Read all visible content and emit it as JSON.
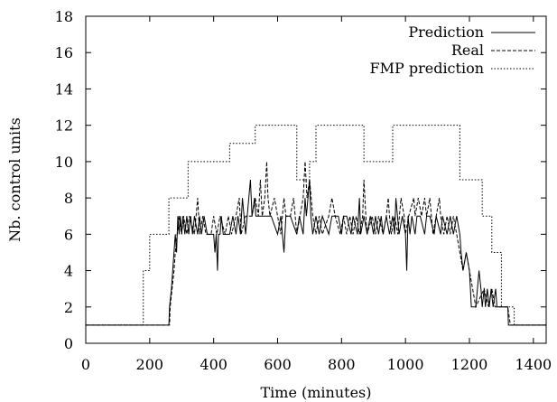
{
  "chart_data": {
    "type": "line",
    "title": "",
    "xlabel": "Time (minutes)",
    "ylabel": "Nb. control units",
    "xlim": [
      0,
      1440
    ],
    "ylim": [
      0,
      18
    ],
    "x_ticks": [
      "0",
      "200",
      "400",
      "600",
      "800",
      "1000",
      "1200",
      "1400"
    ],
    "y_ticks": [
      "0",
      "2",
      "4",
      "6",
      "8",
      "10",
      "12",
      "14",
      "16",
      "18"
    ],
    "grid": false,
    "legend_position": "top-right",
    "series": [
      {
        "name": "Prediction",
        "style": "solid",
        "points": [
          [
            0,
            1
          ],
          [
            260,
            1
          ],
          [
            262,
            2
          ],
          [
            268,
            3
          ],
          [
            272,
            4
          ],
          [
            276,
            5
          ],
          [
            280,
            6
          ],
          [
            284,
            5
          ],
          [
            288,
            7
          ],
          [
            292,
            6
          ],
          [
            296,
            7
          ],
          [
            300,
            6
          ],
          [
            304,
            7
          ],
          [
            310,
            6
          ],
          [
            316,
            7
          ],
          [
            322,
            6
          ],
          [
            328,
            7
          ],
          [
            334,
            6
          ],
          [
            340,
            7
          ],
          [
            350,
            6
          ],
          [
            356,
            7
          ],
          [
            362,
            6
          ],
          [
            370,
            7
          ],
          [
            380,
            6
          ],
          [
            400,
            6
          ],
          [
            404,
            5
          ],
          [
            408,
            6
          ],
          [
            412,
            4
          ],
          [
            415,
            6
          ],
          [
            420,
            6
          ],
          [
            424,
            7
          ],
          [
            430,
            6
          ],
          [
            450,
            6
          ],
          [
            460,
            7
          ],
          [
            470,
            6
          ],
          [
            476,
            7
          ],
          [
            484,
            6
          ],
          [
            490,
            8
          ],
          [
            495,
            7
          ],
          [
            500,
            6
          ],
          [
            505,
            7
          ],
          [
            515,
            9
          ],
          [
            520,
            7
          ],
          [
            528,
            8
          ],
          [
            532,
            7
          ],
          [
            545,
            7
          ],
          [
            560,
            7
          ],
          [
            580,
            7
          ],
          [
            600,
            6
          ],
          [
            610,
            7
          ],
          [
            620,
            5
          ],
          [
            626,
            7
          ],
          [
            640,
            7
          ],
          [
            660,
            6
          ],
          [
            668,
            7
          ],
          [
            680,
            6
          ],
          [
            686,
            8
          ],
          [
            690,
            7
          ],
          [
            700,
            9
          ],
          [
            704,
            7
          ],
          [
            710,
            6
          ],
          [
            720,
            7
          ],
          [
            730,
            6
          ],
          [
            740,
            7
          ],
          [
            760,
            6
          ],
          [
            770,
            7
          ],
          [
            790,
            7
          ],
          [
            800,
            6
          ],
          [
            806,
            7
          ],
          [
            816,
            7
          ],
          [
            830,
            6
          ],
          [
            836,
            7
          ],
          [
            850,
            6
          ],
          [
            856,
            8
          ],
          [
            860,
            6
          ],
          [
            870,
            7
          ],
          [
            880,
            6
          ],
          [
            890,
            7
          ],
          [
            900,
            6
          ],
          [
            906,
            7
          ],
          [
            916,
            6
          ],
          [
            924,
            7
          ],
          [
            930,
            6
          ],
          [
            940,
            7
          ],
          [
            950,
            6
          ],
          [
            960,
            7
          ],
          [
            966,
            6
          ],
          [
            970,
            8
          ],
          [
            975,
            7
          ],
          [
            980,
            6
          ],
          [
            990,
            7
          ],
          [
            1000,
            6
          ],
          [
            1004,
            4
          ],
          [
            1008,
            7
          ],
          [
            1014,
            6
          ],
          [
            1020,
            7
          ],
          [
            1030,
            6
          ],
          [
            1036,
            7
          ],
          [
            1046,
            7
          ],
          [
            1060,
            6
          ],
          [
            1066,
            7
          ],
          [
            1076,
            7
          ],
          [
            1090,
            6
          ],
          [
            1096,
            7
          ],
          [
            1110,
            6
          ],
          [
            1116,
            7
          ],
          [
            1130,
            6
          ],
          [
            1140,
            7
          ],
          [
            1150,
            6
          ],
          [
            1160,
            7
          ],
          [
            1170,
            6
          ],
          [
            1174,
            5
          ],
          [
            1180,
            4
          ],
          [
            1190,
            5
          ],
          [
            1200,
            4
          ],
          [
            1206,
            2
          ],
          [
            1220,
            2
          ],
          [
            1230,
            4
          ],
          [
            1236,
            3
          ],
          [
            1240,
            2
          ],
          [
            1246,
            3
          ],
          [
            1250,
            2
          ],
          [
            1256,
            3
          ],
          [
            1262,
            2
          ],
          [
            1268,
            3
          ],
          [
            1274,
            2
          ],
          [
            1282,
            3
          ],
          [
            1286,
            2
          ],
          [
            1320,
            2
          ],
          [
            1322,
            1
          ],
          [
            1440,
            1
          ]
        ]
      },
      {
        "name": "Real",
        "style": "dashed",
        "points": [
          [
            0,
            1
          ],
          [
            262,
            1
          ],
          [
            264,
            2
          ],
          [
            270,
            3
          ],
          [
            276,
            4
          ],
          [
            280,
            5
          ],
          [
            286,
            6
          ],
          [
            292,
            7
          ],
          [
            300,
            6
          ],
          [
            306,
            7
          ],
          [
            316,
            6
          ],
          [
            324,
            7
          ],
          [
            340,
            6
          ],
          [
            350,
            8
          ],
          [
            356,
            6
          ],
          [
            366,
            7
          ],
          [
            376,
            6
          ],
          [
            392,
            6
          ],
          [
            400,
            7
          ],
          [
            410,
            6
          ],
          [
            420,
            7
          ],
          [
            436,
            6
          ],
          [
            446,
            7
          ],
          [
            456,
            6
          ],
          [
            470,
            7
          ],
          [
            480,
            8
          ],
          [
            486,
            6
          ],
          [
            500,
            7
          ],
          [
            520,
            7
          ],
          [
            530,
            8
          ],
          [
            540,
            7
          ],
          [
            546,
            9
          ],
          [
            552,
            7
          ],
          [
            560,
            8
          ],
          [
            566,
            10
          ],
          [
            570,
            8
          ],
          [
            576,
            7
          ],
          [
            590,
            8
          ],
          [
            600,
            7
          ],
          [
            610,
            6
          ],
          [
            620,
            8
          ],
          [
            626,
            7
          ],
          [
            640,
            7
          ],
          [
            650,
            8
          ],
          [
            660,
            6
          ],
          [
            670,
            7
          ],
          [
            680,
            8
          ],
          [
            686,
            10
          ],
          [
            692,
            8
          ],
          [
            700,
            9
          ],
          [
            710,
            7
          ],
          [
            720,
            6
          ],
          [
            730,
            7
          ],
          [
            740,
            6
          ],
          [
            760,
            7
          ],
          [
            770,
            8
          ],
          [
            780,
            7
          ],
          [
            796,
            6
          ],
          [
            806,
            7
          ],
          [
            816,
            6
          ],
          [
            826,
            7
          ],
          [
            836,
            6
          ],
          [
            846,
            7
          ],
          [
            856,
            6
          ],
          [
            866,
            7
          ],
          [
            870,
            9
          ],
          [
            876,
            7
          ],
          [
            880,
            6
          ],
          [
            896,
            7
          ],
          [
            906,
            6
          ],
          [
            916,
            7
          ],
          [
            930,
            6
          ],
          [
            940,
            7
          ],
          [
            946,
            8
          ],
          [
            950,
            7
          ],
          [
            956,
            6
          ],
          [
            966,
            7
          ],
          [
            976,
            6
          ],
          [
            986,
            8
          ],
          [
            996,
            7
          ],
          [
            1000,
            6
          ],
          [
            1010,
            7
          ],
          [
            1026,
            8
          ],
          [
            1030,
            7
          ],
          [
            1040,
            8
          ],
          [
            1050,
            7
          ],
          [
            1060,
            8
          ],
          [
            1066,
            7
          ],
          [
            1076,
            8
          ],
          [
            1086,
            6
          ],
          [
            1096,
            7
          ],
          [
            1106,
            8
          ],
          [
            1110,
            7
          ],
          [
            1120,
            6
          ],
          [
            1130,
            7
          ],
          [
            1140,
            6
          ],
          [
            1150,
            7
          ],
          [
            1160,
            6
          ],
          [
            1170,
            5
          ],
          [
            1180,
            4
          ],
          [
            1190,
            5
          ],
          [
            1200,
            4
          ],
          [
            1210,
            3
          ],
          [
            1220,
            2
          ],
          [
            1246,
            3
          ],
          [
            1260,
            2
          ],
          [
            1270,
            3
          ],
          [
            1280,
            2
          ],
          [
            1320,
            2
          ],
          [
            1328,
            1
          ],
          [
            1440,
            1
          ]
        ]
      },
      {
        "name": "FMP prediction",
        "style": "dotted",
        "points": [
          [
            0,
            1
          ],
          [
            180,
            1
          ],
          [
            180,
            4
          ],
          [
            200,
            4
          ],
          [
            200,
            6
          ],
          [
            260,
            6
          ],
          [
            260,
            8
          ],
          [
            320,
            8
          ],
          [
            320,
            10
          ],
          [
            450,
            10
          ],
          [
            450,
            11
          ],
          [
            530,
            11
          ],
          [
            530,
            12
          ],
          [
            660,
            12
          ],
          [
            660,
            9
          ],
          [
            700,
            9
          ],
          [
            700,
            10
          ],
          [
            720,
            10
          ],
          [
            720,
            12
          ],
          [
            870,
            12
          ],
          [
            870,
            10
          ],
          [
            960,
            10
          ],
          [
            960,
            12
          ],
          [
            1170,
            12
          ],
          [
            1170,
            9
          ],
          [
            1240,
            9
          ],
          [
            1240,
            7
          ],
          [
            1270,
            7
          ],
          [
            1270,
            5
          ],
          [
            1300,
            5
          ],
          [
            1300,
            2
          ],
          [
            1340,
            2
          ],
          [
            1340,
            1
          ],
          [
            1440,
            1
          ]
        ]
      }
    ]
  }
}
